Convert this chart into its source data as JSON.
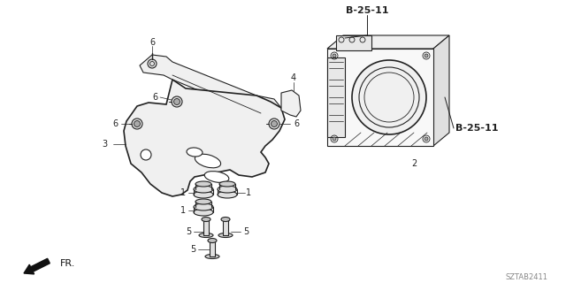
{
  "bg_color": "#ffffff",
  "line_color": "#222222",
  "diagram_id": "SZTAB2411",
  "b25_label": "B-25-11",
  "fr_label": "FR.",
  "lw": 0.8,
  "lw_thick": 1.2
}
